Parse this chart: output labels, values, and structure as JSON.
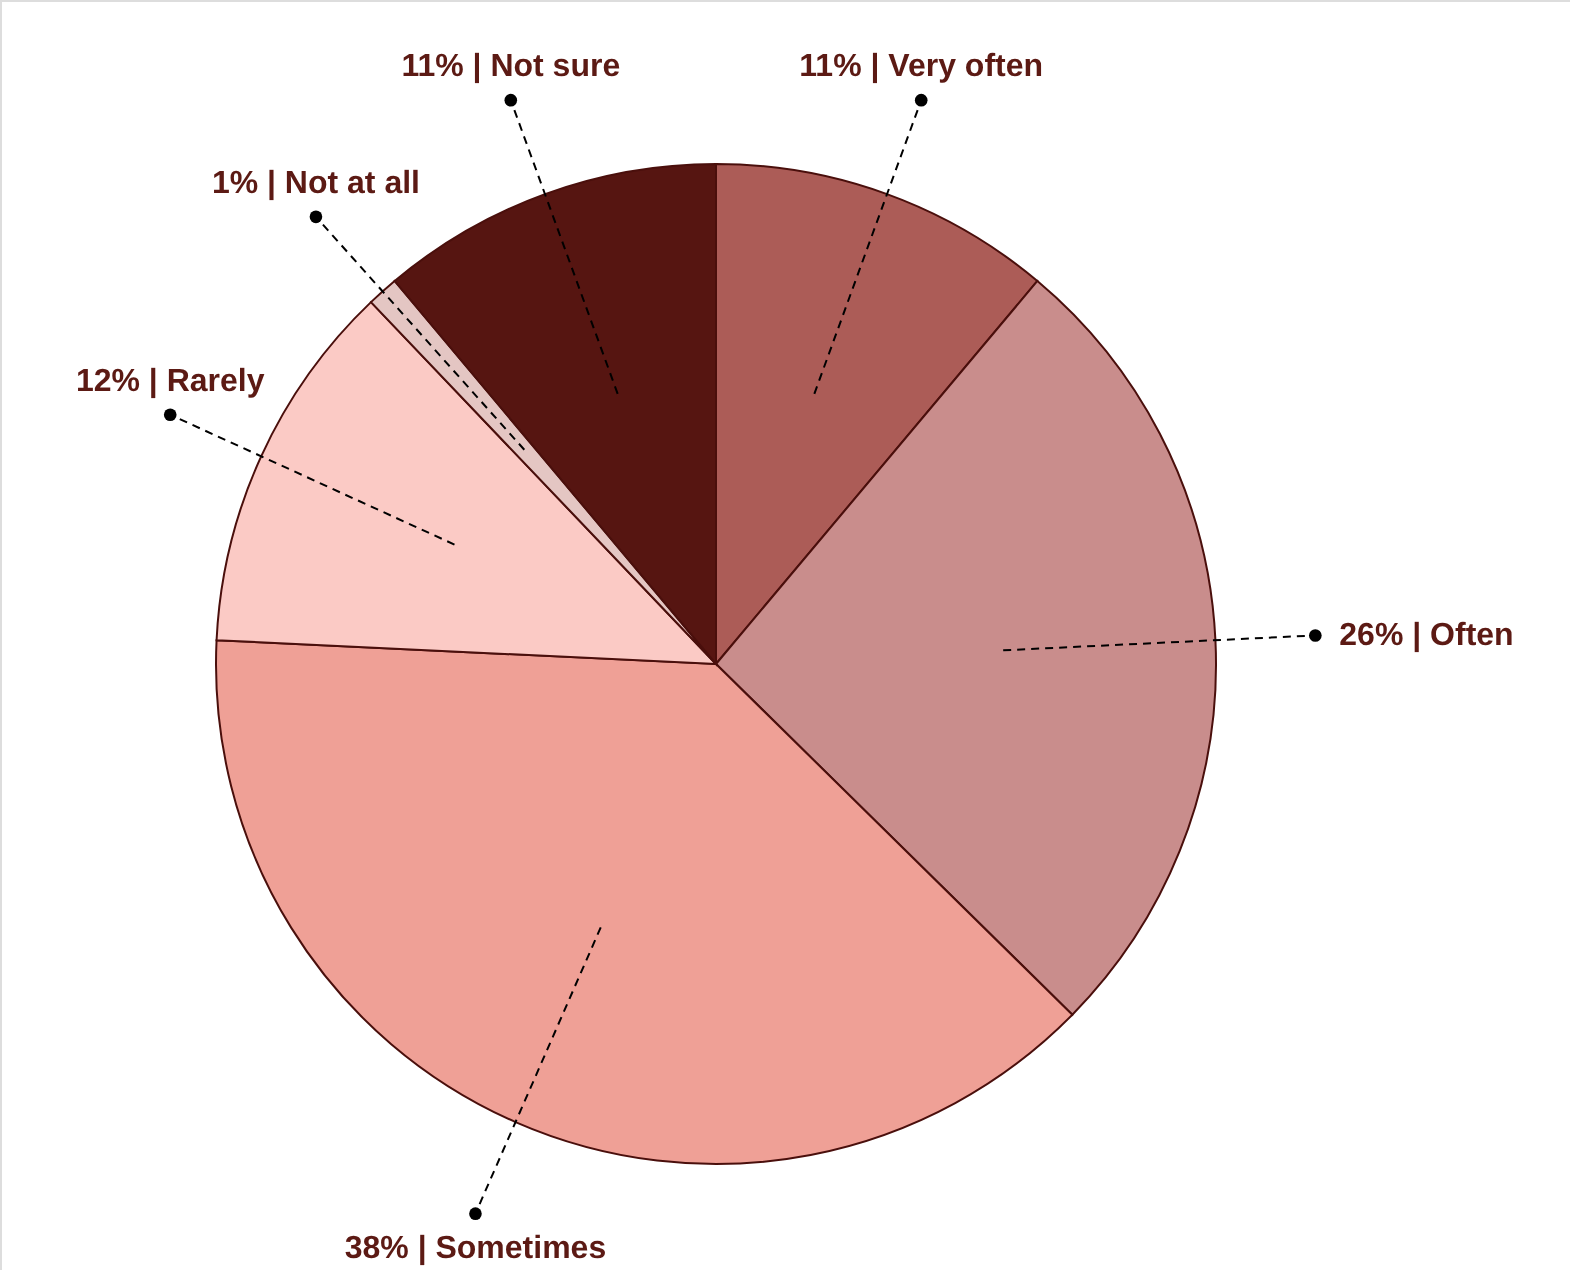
{
  "chart_data": {
    "type": "pie",
    "categories": [
      "Very often",
      "Often",
      "Sometimes",
      "Rarely",
      "Not at all",
      "Not sure"
    ],
    "values": [
      11,
      26,
      38,
      12,
      1,
      11
    ],
    "colors": [
      "#ac5c57",
      "#c98d8c",
      "#efa096",
      "#fbcac5",
      "#e4c6c3",
      "#561511"
    ],
    "value_labels": [
      "11% |",
      "26% |",
      "38% |",
      "12% |",
      "1% |",
      "11% |"
    ]
  }
}
